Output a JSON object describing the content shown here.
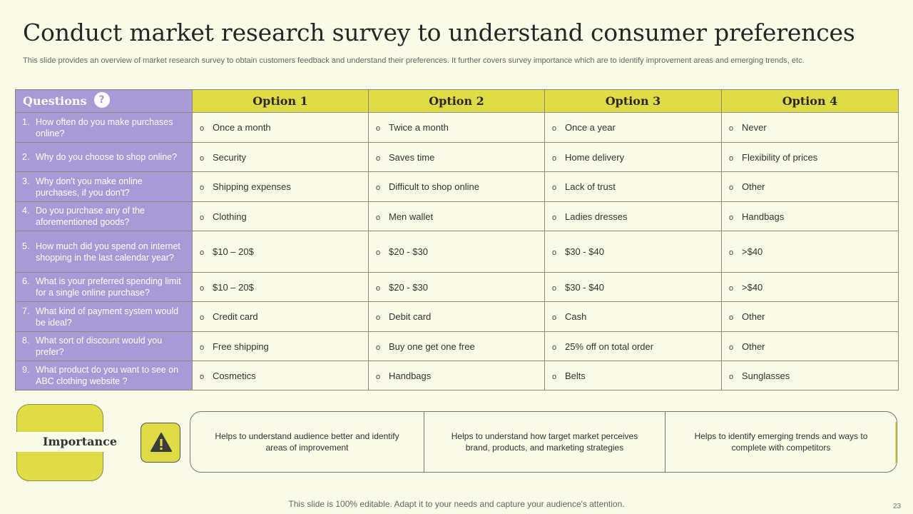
{
  "title": "Conduct market research survey to understand consumer preferences",
  "subtitle": "This slide provides an overview of market research survey to obtain customers feedback and understand their preferences. It further covers survey importance which are to identify improvement areas and emerging trends, etc.",
  "table": {
    "questions_header": "Questions",
    "question_icon": "question-head-icon",
    "option_headers": [
      "Option 1",
      "Option 2",
      "Option 3",
      "Option 4"
    ],
    "bullet": "o",
    "rows": [
      {
        "num": "1.",
        "question": "How often do you make purchases online?",
        "options": [
          "Once a month",
          "Twice a month",
          "Once a year",
          "Never"
        ]
      },
      {
        "num": "2.",
        "question": "Why do you choose to shop online?",
        "options": [
          "Security",
          "Saves time",
          "Home delivery",
          "Flexibility of prices"
        ]
      },
      {
        "num": "3.",
        "question": "Why don't you make online purchases, if you don't?",
        "options": [
          "Shipping expenses",
          "Difficult to shop online",
          "Lack of trust",
          "Other"
        ]
      },
      {
        "num": "4.",
        "question": "Do you purchase any of the aforementioned goods?",
        "options": [
          "Clothing",
          "Men wallet",
          "Ladies dresses",
          "Handbags"
        ]
      },
      {
        "num": "5.",
        "question": "How much did you spend on internet shopping in the last calendar year?",
        "options": [
          "$10 – 20$",
          "$20 - $30",
          "$30 - $40",
          ">$40"
        ]
      },
      {
        "num": "6.",
        "question": "What is your preferred spending limit for a single online purchase?",
        "options": [
          "$10 – 20$",
          "$20 - $30",
          "$30 - $40",
          ">$40"
        ]
      },
      {
        "num": "7.",
        "question": "What kind of payment system would be ideal?",
        "options": [
          "Credit card",
          "Debit card",
          "Cash",
          "Other"
        ]
      },
      {
        "num": "8.",
        "question": "What sort of discount would you prefer?",
        "options": [
          "Free shipping",
          "Buy one get one free",
          "25% off on total order",
          "Other"
        ]
      },
      {
        "num": "9.",
        "question": "What product do you want to see on ABC clothing website ?",
        "options": [
          "Cosmetics",
          "Handbags",
          "Belts",
          "Sunglasses"
        ]
      }
    ]
  },
  "importance": {
    "label": "Importance",
    "icon": "warning-icon",
    "points": [
      "Helps to understand audience better and identify areas of improvement",
      "Helps to understand how target market perceives brand, products, and marketing strategies",
      "Helps to identify emerging trends and ways to complete with competitors"
    ]
  },
  "footer": "This slide is 100% editable. Adapt it to your needs and capture your audience's attention.",
  "page_number": "23",
  "colors": {
    "accent_yellow": "#dedb45",
    "accent_purple": "#a89ad6",
    "background": "#fafae8"
  }
}
